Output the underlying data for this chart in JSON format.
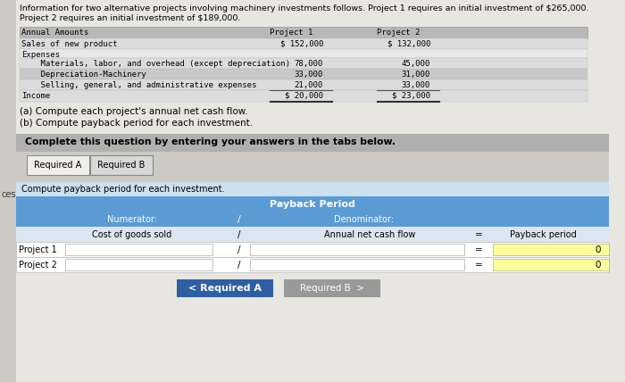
{
  "bg_color": "#cccac2",
  "page_bg": "#e8e6e0",
  "header_line1": "Information for two alternative projects involving machinery investments follows. Project 1 requires an initial investment of $265,000.",
  "header_line2": "Project 2 requires an initial investment of $189,000.",
  "table1_header_bg": "#b8b8b8",
  "table1_row_bg1": "#dcdcdc",
  "table1_row_bg2": "#e8e8e8",
  "table1_dep_bg": "#c8c8c8",
  "table1_col_headers": [
    "Annual Amounts",
    "Project 1",
    "Project 2"
  ],
  "table1_rows": [
    [
      "Sales of new product",
      "$ 152,000",
      "$ 132,000"
    ],
    [
      "Expenses",
      "",
      ""
    ],
    [
      "    Materials, labor, and overhead (except depreciation)",
      "78,000",
      "45,000"
    ],
    [
      "    Depreciation-Machinery",
      "33,000",
      "31,000"
    ],
    [
      "    Selling, general, and administrative expenses",
      "21,000",
      "33,000"
    ],
    [
      "Income",
      "$ 20,000",
      "$ 23,000"
    ]
  ],
  "instr1": "(a) Compute each project's annual net cash flow.",
  "instr2": "(b) Compute payback period for each investment.",
  "complete_bg": "#b0b0b0",
  "complete_text": "Complete this question by entering your answers in the tabs below.",
  "tab1": "Required A",
  "tab2": "Required B",
  "tab1_bg": "#f0eeea",
  "tab2_bg": "#d8d8d8",
  "tab_border": "#888888",
  "compute_text": "Compute payback period for each investment.",
  "compute_bg": "#cce0f0",
  "pb_header_bg": "#5b9bd5",
  "pb_subheader_bg": "#5b9bd5",
  "pb_colrow_bg": "#dce6f1",
  "pb_row_bg": "#ffffff",
  "pb_yellow": "#ffff99",
  "pb_border": "#aaaaaa",
  "payback_header": "Payback Period",
  "numerator_label": "Numerator:",
  "slash": "/",
  "denominator_label": "Denominator:",
  "num_col_label": "Cost of goods sold",
  "den_col_label": "Annual net cash flow",
  "eq_col_label": "=",
  "payback_col_label": "Payback period",
  "projects": [
    "Project 1",
    "Project 2"
  ],
  "payback_vals": [
    "0",
    "0"
  ],
  "btn1_label": "< Required A",
  "btn1_bg": "#2e5fa3",
  "btn2_label": "Required B  >",
  "btn2_bg": "#999999",
  "btn_fg": "#ffffff",
  "left_strip_bg": "#aaaaaa",
  "ces_color": "#333333"
}
